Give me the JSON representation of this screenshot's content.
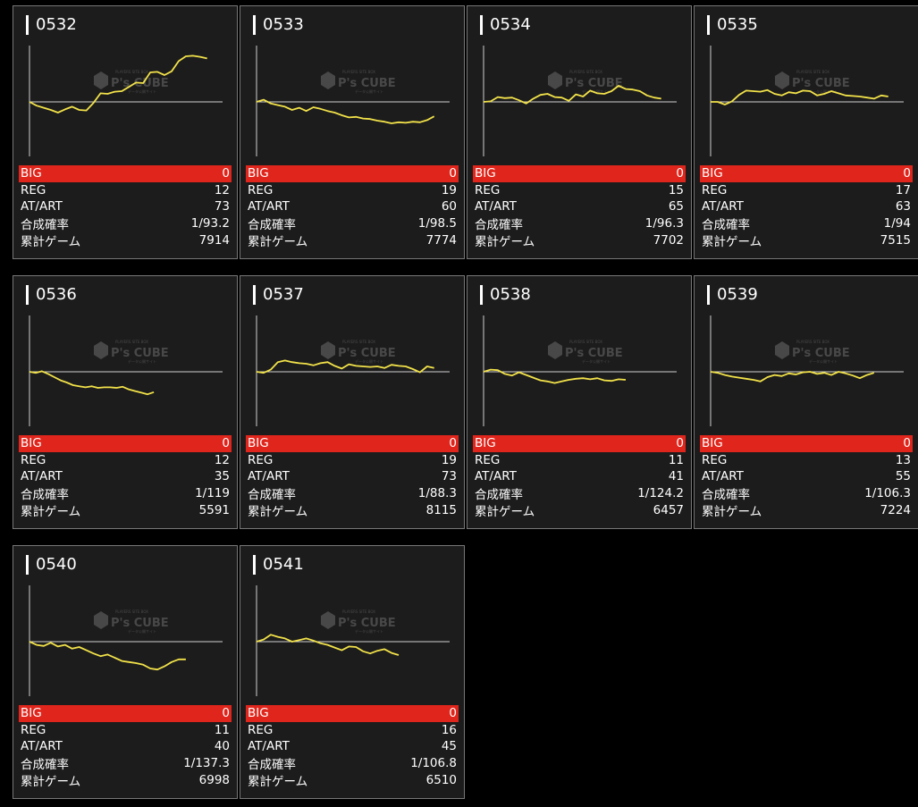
{
  "stat_labels": {
    "big": "BIG",
    "reg": "REG",
    "at": "AT/ART",
    "rate": "合成確率",
    "games": "累計ゲーム"
  },
  "colors": {
    "line": "#f2e24a",
    "big_bg": "#e0261c",
    "card_bg": "#1c1c1c",
    "axis": "#d0d0d0"
  },
  "watermark": {
    "brand": "P's CUBE",
    "small_top": "PLAYERS SITE BOX",
    "small_bottom": "データ公開サイト"
  },
  "machines": [
    {
      "id": "0532",
      "big": "0",
      "reg": "12",
      "at": "73",
      "rate": "1/93.2",
      "games": "7914",
      "chart_data": {
        "type": "line",
        "ylim": [
          -700,
          1000
        ],
        "x": [
          0,
          8,
          16,
          24,
          32,
          40,
          48,
          56,
          64,
          72,
          80,
          88,
          96,
          104,
          112,
          120,
          128,
          136,
          144,
          152,
          160,
          168,
          176,
          184,
          192,
          200
        ],
        "y": [
          0,
          -70,
          -110,
          -150,
          -200,
          -140,
          -90,
          -150,
          -160,
          -20,
          160,
          150,
          190,
          200,
          280,
          360,
          350,
          550,
          560,
          500,
          570,
          760,
          850,
          860,
          840,
          810
        ]
      }
    },
    {
      "id": "0533",
      "big": "0",
      "reg": "19",
      "at": "60",
      "rate": "1/98.5",
      "games": "7774",
      "chart_data": {
        "type": "line",
        "ylim": [
          -700,
          1000
        ],
        "x": [
          0,
          8,
          16,
          24,
          32,
          40,
          48,
          56,
          64,
          72,
          80,
          88,
          96,
          104,
          112,
          120,
          128,
          136,
          144,
          152,
          160,
          168,
          176,
          184,
          192,
          200
        ],
        "y": [
          0,
          40,
          -30,
          -60,
          -90,
          -150,
          -110,
          -170,
          -100,
          -130,
          -170,
          -200,
          -250,
          -290,
          -280,
          -310,
          -320,
          -350,
          -370,
          -400,
          -380,
          -390,
          -370,
          -380,
          -340,
          -270
        ]
      }
    },
    {
      "id": "0534",
      "big": "0",
      "reg": "15",
      "at": "65",
      "rate": "1/96.3",
      "games": "7702",
      "chart_data": {
        "type": "line",
        "ylim": [
          -700,
          1000
        ],
        "x": [
          0,
          8,
          16,
          24,
          32,
          40,
          48,
          56,
          64,
          72,
          80,
          88,
          96,
          104,
          112,
          120,
          128,
          136,
          144,
          152,
          160,
          168,
          176,
          184,
          192,
          200
        ],
        "y": [
          0,
          10,
          90,
          70,
          80,
          30,
          -30,
          60,
          130,
          150,
          90,
          80,
          20,
          140,
          100,
          210,
          160,
          150,
          200,
          300,
          240,
          230,
          200,
          120,
          80,
          60
        ]
      }
    },
    {
      "id": "0535",
      "big": "0",
      "reg": "17",
      "at": "63",
      "rate": "1/94",
      "games": "7515",
      "chart_data": {
        "type": "line",
        "ylim": [
          -700,
          1000
        ],
        "x": [
          0,
          8,
          16,
          24,
          32,
          40,
          48,
          56,
          64,
          72,
          80,
          88,
          96,
          104,
          112,
          120,
          128,
          136,
          144,
          152,
          160,
          168,
          176,
          184,
          192,
          200
        ],
        "y": [
          0,
          0,
          -50,
          10,
          130,
          210,
          200,
          190,
          220,
          150,
          120,
          180,
          160,
          210,
          200,
          120,
          150,
          200,
          160,
          120,
          110,
          100,
          80,
          60,
          120,
          100
        ]
      }
    },
    {
      "id": "0536",
      "big": "0",
      "reg": "12",
      "at": "35",
      "rate": "1/119",
      "games": "5591",
      "chart_data": {
        "type": "line",
        "ylim": [
          -700,
          1000
        ],
        "x": [
          0,
          7,
          14,
          21,
          28,
          35,
          42,
          49,
          56,
          63,
          70,
          77,
          84,
          91,
          98,
          105,
          112,
          119,
          126,
          133,
          140
        ],
        "y": [
          0,
          -20,
          10,
          -40,
          -100,
          -160,
          -200,
          -250,
          -270,
          -290,
          -270,
          -300,
          -290,
          -290,
          -300,
          -280,
          -330,
          -360,
          -390,
          -420,
          -380
        ]
      }
    },
    {
      "id": "0537",
      "big": "0",
      "reg": "19",
      "at": "73",
      "rate": "1/88.3",
      "games": "8115",
      "chart_data": {
        "type": "line",
        "ylim": [
          -700,
          1000
        ],
        "x": [
          0,
          8,
          16,
          24,
          32,
          40,
          48,
          56,
          64,
          72,
          80,
          88,
          96,
          104,
          112,
          120,
          128,
          136,
          144,
          152,
          160,
          168,
          176,
          184,
          192,
          200
        ],
        "y": [
          0,
          -20,
          40,
          180,
          210,
          180,
          160,
          150,
          120,
          160,
          180,
          110,
          60,
          140,
          110,
          100,
          90,
          100,
          70,
          130,
          110,
          100,
          50,
          -10,
          100,
          70
        ]
      }
    },
    {
      "id": "0538",
      "big": "0",
      "reg": "11",
      "at": "41",
      "rate": "1/124.2",
      "games": "6457",
      "chart_data": {
        "type": "line",
        "ylim": [
          -700,
          1000
        ],
        "x": [
          0,
          8,
          16,
          24,
          32,
          40,
          48,
          56,
          64,
          72,
          80,
          88,
          96,
          104,
          112,
          120,
          128,
          136,
          144,
          152,
          160
        ],
        "y": [
          0,
          40,
          30,
          -40,
          -70,
          -10,
          -60,
          -110,
          -160,
          -180,
          -210,
          -180,
          -150,
          -130,
          -120,
          -140,
          -120,
          -160,
          -170,
          -140,
          -150
        ]
      }
    },
    {
      "id": "0539",
      "big": "0",
      "reg": "13",
      "at": "55",
      "rate": "1/106.3",
      "games": "7224",
      "chart_data": {
        "type": "line",
        "ylim": [
          -700,
          1000
        ],
        "x": [
          0,
          8,
          16,
          24,
          32,
          40,
          48,
          56,
          64,
          72,
          80,
          88,
          96,
          104,
          112,
          120,
          128,
          136,
          144,
          152,
          160,
          168,
          176,
          184
        ],
        "y": [
          0,
          -20,
          -60,
          -90,
          -110,
          -130,
          -150,
          -180,
          -100,
          -60,
          -80,
          -30,
          -50,
          -10,
          0,
          -40,
          -20,
          -60,
          0,
          -30,
          -70,
          -120,
          -60,
          -20
        ]
      }
    },
    {
      "id": "0540",
      "big": "0",
      "reg": "11",
      "at": "40",
      "rate": "1/137.3",
      "games": "6998",
      "chart_data": {
        "type": "line",
        "ylim": [
          -700,
          1000
        ],
        "x": [
          0,
          8,
          16,
          24,
          32,
          40,
          48,
          56,
          64,
          72,
          80,
          88,
          96,
          104,
          112,
          120,
          128,
          136,
          144,
          152,
          160,
          168,
          176
        ],
        "y": [
          0,
          -60,
          -80,
          -20,
          -90,
          -60,
          -130,
          -100,
          -160,
          -220,
          -270,
          -240,
          -300,
          -360,
          -380,
          -400,
          -430,
          -500,
          -520,
          -460,
          -380,
          -330,
          -330
        ]
      }
    },
    {
      "id": "0541",
      "big": "0",
      "reg": "16",
      "at": "45",
      "rate": "1/106.8",
      "games": "6510",
      "chart_data": {
        "type": "line",
        "ylim": [
          -700,
          1000
        ],
        "x": [
          0,
          8,
          16,
          24,
          32,
          40,
          48,
          56,
          64,
          72,
          80,
          88,
          96,
          104,
          112,
          120,
          128,
          136,
          144,
          152,
          160
        ],
        "y": [
          0,
          40,
          130,
          90,
          60,
          0,
          30,
          60,
          20,
          -30,
          -60,
          -110,
          -160,
          -90,
          -100,
          -180,
          -220,
          -170,
          -140,
          -210,
          -250
        ]
      }
    }
  ]
}
